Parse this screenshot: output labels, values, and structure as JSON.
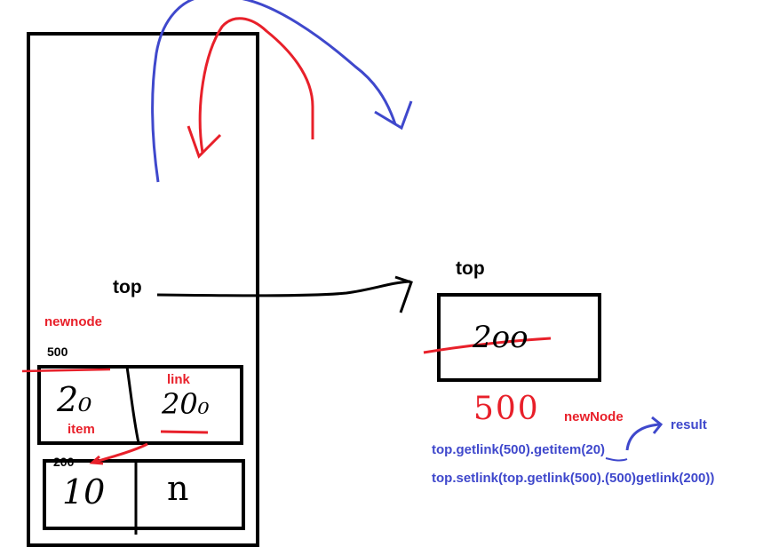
{
  "labels": {
    "top_left": "top",
    "top_right": "top",
    "newnode": "newnode",
    "addr_500": "500",
    "link": "link",
    "item": "item",
    "addr_200": "200",
    "newNode": "newNode",
    "result": "result",
    "code_line1": "top.getlink(500).getitem(20)",
    "code_line2": "top.setlink(top.getlink(500).(500)getlink(200))"
  },
  "handwriting": {
    "node1_item": "2₀",
    "node1_link": "20₀",
    "node2_item": "10",
    "node2_link": "n",
    "top_box_value": "2oo",
    "red_500": "500"
  },
  "colors": {
    "ink_black": "#000000",
    "ink_red": "#e8202a",
    "ink_blue": "#3f48cc"
  }
}
